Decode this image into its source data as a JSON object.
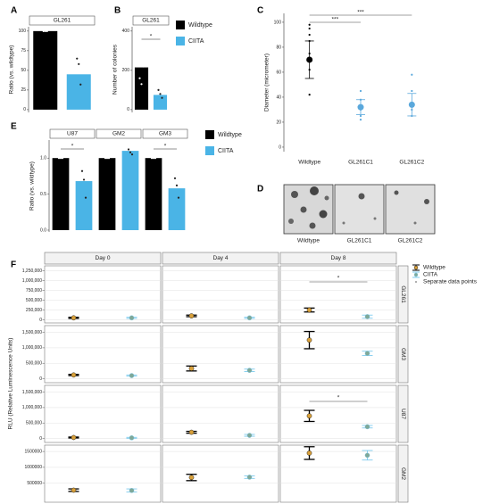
{
  "chart_data": [
    {
      "label": "A",
      "type": "bar",
      "facets": [
        {
          "title": "GL261",
          "values": [
            100,
            45
          ],
          "points": [
            [
              100,
              100,
              100
            ],
            [
              65,
              58,
              32
            ]
          ]
        }
      ],
      "colors": [
        "#000000",
        "#4ab4e6"
      ],
      "ylabel": "Ratio (vs. wildtype)",
      "ylim": [
        -3.5,
        105.5
      ],
      "yticks": [
        0,
        25,
        50,
        75,
        100
      ]
    },
    {
      "label": "B",
      "type": "bar",
      "facets": [
        {
          "title": "GL261",
          "values": [
            215,
            75
          ],
          "points": [
            [
              300,
              255,
              220,
              160,
              130
            ],
            [
              100,
              80,
              60
            ]
          ]
        }
      ],
      "series": [
        {
          "name": "Wildtype",
          "color": "#000000"
        },
        {
          "name": "CIITA",
          "color": "#4ab4e6"
        }
      ],
      "ylabel": "Number of colonies",
      "ylim": [
        -14,
        422
      ],
      "yticks": [
        0,
        200,
        400
      ],
      "annotations": [
        {
          "text": "*",
          "from": 0,
          "to": 1
        }
      ]
    },
    {
      "label": "C",
      "type": "dot-error",
      "categories": [
        "Wildtype",
        "GL261C1",
        "GL261C2"
      ],
      "values": [
        70,
        32,
        34
      ],
      "errors": [
        15,
        6,
        9
      ],
      "points": [
        [
          98,
          95,
          90,
          85,
          75,
          62,
          42
        ],
        [
          45,
          38,
          30,
          25,
          22
        ],
        [
          58,
          45,
          30,
          25
        ]
      ],
      "colors": [
        "#000000",
        "#5aa8dc",
        "#5aa8dc"
      ],
      "ylabel": "Diameter (micrometer)",
      "ylim": [
        -3.6,
        107.1
      ],
      "yticks": [
        0,
        20,
        40,
        60,
        80,
        100
      ],
      "annotations": [
        {
          "text": "***",
          "from": 0,
          "to": 1
        },
        {
          "text": "***",
          "from": 0,
          "to": 2
        }
      ]
    },
    {
      "label": "D",
      "type": "image",
      "captions": [
        "Wildtype",
        "GL261C1",
        "GL261C2"
      ]
    },
    {
      "label": "E",
      "type": "bar",
      "facets": [
        {
          "title": "U87",
          "values": [
            1,
            0.68
          ],
          "points": [
            [
              1,
              1,
              1
            ],
            [
              0.82,
              0.7,
              0.45
            ]
          ]
        },
        {
          "title": "GM2",
          "values": [
            1,
            1.1
          ],
          "points": [
            [
              1,
              1,
              1
            ],
            [
              1.12,
              1.08,
              1.05
            ]
          ]
        },
        {
          "title": "GM3",
          "values": [
            1,
            0.58
          ],
          "points": [
            [
              1,
              1,
              1
            ],
            [
              0.72,
              0.62,
              0.45
            ]
          ]
        }
      ],
      "series": [
        {
          "name": "Wildtype",
          "color": "#000000"
        },
        {
          "name": "CIITA",
          "color": "#4ab4e6"
        }
      ],
      "ylabel": "Ratio (vs. wildtype)",
      "ylim": [
        -0.025,
        1.25
      ],
      "yticks": [
        {
          "value": 0,
          "label": "0.0"
        },
        {
          "value": 0.5,
          "label": "0.5"
        },
        {
          "value": 1,
          "label": "1.0"
        }
      ],
      "annotations": [
        {
          "text": "*",
          "facet": 0,
          "from": 0,
          "to": 1
        },
        {
          "text": "*",
          "facet": 2,
          "from": 0,
          "to": 1
        }
      ]
    },
    {
      "label": "F",
      "type": "dot-error-grid",
      "columns": [
        "Day 0",
        "Day 4",
        "Day 8"
      ],
      "series": [
        {
          "name": "Wildtype",
          "color": "#000000",
          "point_color": "#d9a13b"
        },
        {
          "name": "CIITA",
          "color": "#7ecbee",
          "point_color": "#7fa898"
        }
      ],
      "points_label": "Separate data points",
      "ylabel": "RLU (Relative Luminescence Units)",
      "grid": true,
      "rows": [
        {
          "name": "GL261",
          "ylim": [
            -80000,
            1380000
          ],
          "yticks": [
            0,
            {
              "value": 250000,
              "label": "250,000"
            },
            {
              "value": 500000,
              "label": "500,000"
            },
            {
              "value": 750000,
              "label": "750,000"
            },
            {
              "value": 1000000,
              "label": "1,000,000"
            },
            {
              "value": 1250000,
              "label": "1,250,000"
            }
          ],
          "values": [
            [
              50000,
              100000,
              250000
            ],
            [
              50000,
              50000,
              80000
            ]
          ],
          "errors": [
            [
              15000,
              20000,
              50000
            ],
            [
              15000,
              15000,
              40000
            ]
          ]
        },
        {
          "name": "GM3",
          "ylim": [
            -130000,
            1720000
          ],
          "yticks": [
            0,
            {
              "value": 500000,
              "label": "500,000"
            },
            {
              "value": 1000000,
              "label": "1,000,000"
            },
            {
              "value": 1500000,
              "label": "1,500,000"
            }
          ],
          "values": [
            [
              120000,
              330000,
              1250000
            ],
            [
              100000,
              270000,
              820000
            ]
          ],
          "errors": [
            [
              20000,
              80000,
              280000
            ],
            [
              20000,
              40000,
              70000
            ]
          ]
        },
        {
          "name": "U87",
          "ylim": [
            -130000,
            1720000
          ],
          "yticks": [
            0,
            {
              "value": 500000,
              "label": "500,000"
            },
            {
              "value": 1000000,
              "label": "1,000,000"
            },
            {
              "value": 1500000,
              "label": "1,500,000"
            }
          ],
          "values": [
            [
              30000,
              200000,
              730000
            ],
            [
              20000,
              100000,
              380000
            ]
          ],
          "errors": [
            [
              15000,
              30000,
              180000
            ],
            [
              15000,
              30000,
              40000
            ]
          ]
        },
        {
          "name": "GM2",
          "ylim": [
            -100000,
            1700000
          ],
          "yticks": [
            500000,
            1000000,
            1500000
          ],
          "values": [
            [
              280000,
              680000,
              1450000
            ],
            [
              270000,
              690000,
              1380000
            ]
          ],
          "errors": [
            [
              40000,
              100000,
              200000
            ],
            [
              50000,
              40000,
              150000
            ]
          ]
        }
      ],
      "annotations": [
        {
          "text": "*",
          "row": 0,
          "column": 2
        },
        {
          "text": "*",
          "row": 2,
          "column": 2
        }
      ]
    }
  ]
}
